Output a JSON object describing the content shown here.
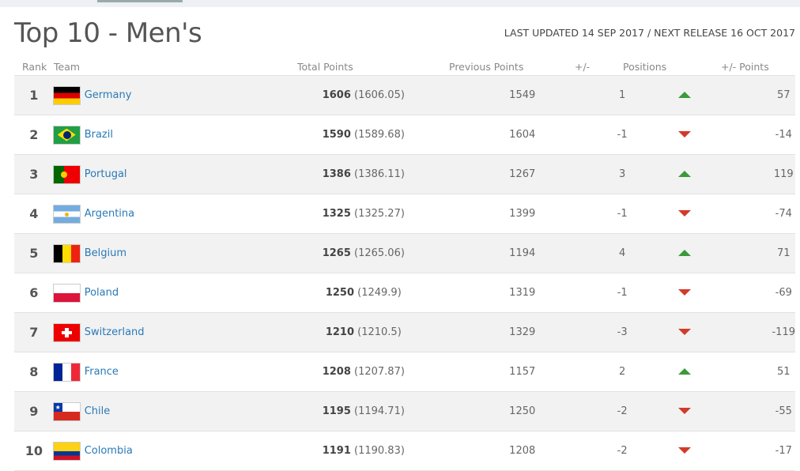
{
  "title": "Top 10 - Men's",
  "updated": "LAST UPDATED 14 SEP 2017 / NEXT RELEASE 16 OCT 2017",
  "columns": {
    "rank": "Rank",
    "team": "Team",
    "total": "Total Points",
    "previous": "Previous Points",
    "change": "+/-",
    "positions": "Positions",
    "points_change": "+/- Points"
  },
  "colors": {
    "up": "#3a9a3a",
    "down": "#d23a2a",
    "link": "#2a7ab8"
  },
  "rows": [
    {
      "rank": "1",
      "team": "Germany",
      "flag": "germany",
      "total": "1606",
      "exact": "(1606.05)",
      "previous": "1549",
      "change": "1",
      "dir": "up",
      "pts": "57"
    },
    {
      "rank": "2",
      "team": "Brazil",
      "flag": "brazil",
      "total": "1590",
      "exact": "(1589.68)",
      "previous": "1604",
      "change": "-1",
      "dir": "down",
      "pts": "-14"
    },
    {
      "rank": "3",
      "team": "Portugal",
      "flag": "portugal",
      "total": "1386",
      "exact": "(1386.11)",
      "previous": "1267",
      "change": "3",
      "dir": "up",
      "pts": "119"
    },
    {
      "rank": "4",
      "team": "Argentina",
      "flag": "argentina",
      "total": "1325",
      "exact": "(1325.27)",
      "previous": "1399",
      "change": "-1",
      "dir": "down",
      "pts": "-74"
    },
    {
      "rank": "5",
      "team": "Belgium",
      "flag": "belgium",
      "total": "1265",
      "exact": "(1265.06)",
      "previous": "1194",
      "change": "4",
      "dir": "up",
      "pts": "71"
    },
    {
      "rank": "6",
      "team": "Poland",
      "flag": "poland",
      "total": "1250",
      "exact": "(1249.9)",
      "previous": "1319",
      "change": "-1",
      "dir": "down",
      "pts": "-69"
    },
    {
      "rank": "7",
      "team": "Switzerland",
      "flag": "switzerland",
      "total": "1210",
      "exact": "(1210.5)",
      "previous": "1329",
      "change": "-3",
      "dir": "down",
      "pts": "-119"
    },
    {
      "rank": "8",
      "team": "France",
      "flag": "france",
      "total": "1208",
      "exact": "(1207.87)",
      "previous": "1157",
      "change": "2",
      "dir": "up",
      "pts": "51"
    },
    {
      "rank": "9",
      "team": "Chile",
      "flag": "chile",
      "total": "1195",
      "exact": "(1194.71)",
      "previous": "1250",
      "change": "-2",
      "dir": "down",
      "pts": "-55"
    },
    {
      "rank": "10",
      "team": "Colombia",
      "flag": "colombia",
      "total": "1191",
      "exact": "(1190.83)",
      "previous": "1208",
      "change": "-2",
      "dir": "down",
      "pts": "-17"
    }
  ]
}
